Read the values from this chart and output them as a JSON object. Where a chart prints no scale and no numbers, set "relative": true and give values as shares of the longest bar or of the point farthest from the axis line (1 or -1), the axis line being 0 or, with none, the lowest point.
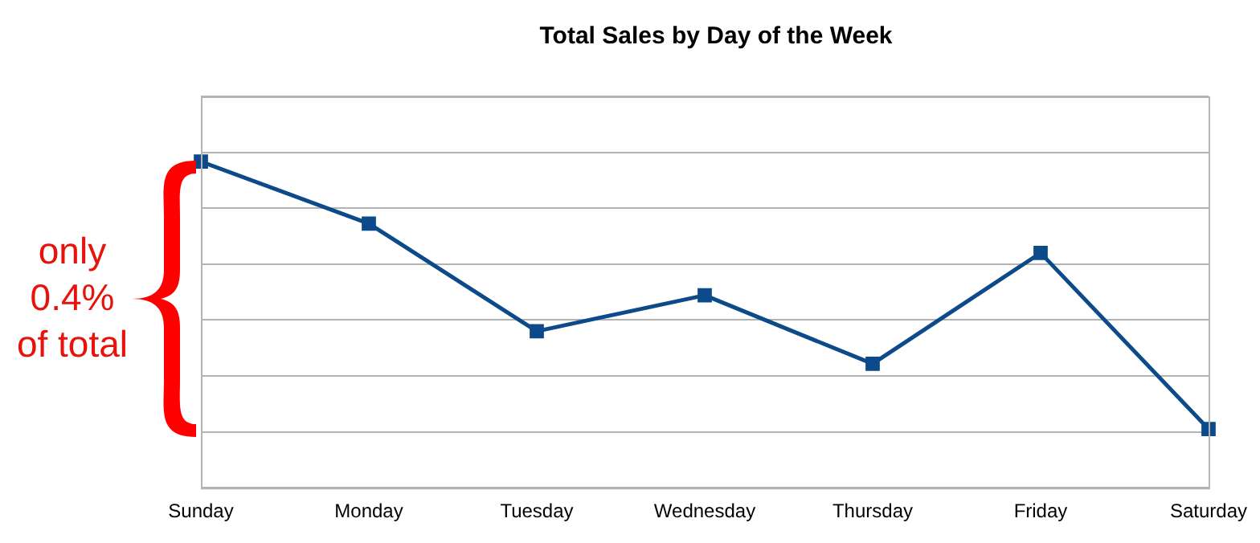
{
  "chart_data": {
    "type": "line",
    "title": "Total Sales by Day of the Week",
    "categories": [
      "Sunday",
      "Monday",
      "Tuesday",
      "Wednesday",
      "Thursday",
      "Friday",
      "Saturday"
    ],
    "series": [
      {
        "color": "#0d4a8a",
        "values": [
          1,
          0.81,
          0.48,
          0.59,
          0.38,
          0.72,
          0.18
        ]
      }
    ],
    "relative": true,
    "grid": "y",
    "legend": false,
    "marker": "square",
    "line_style": "solid",
    "annotations": [
      "only\n0.4%\nof total"
    ]
  }
}
